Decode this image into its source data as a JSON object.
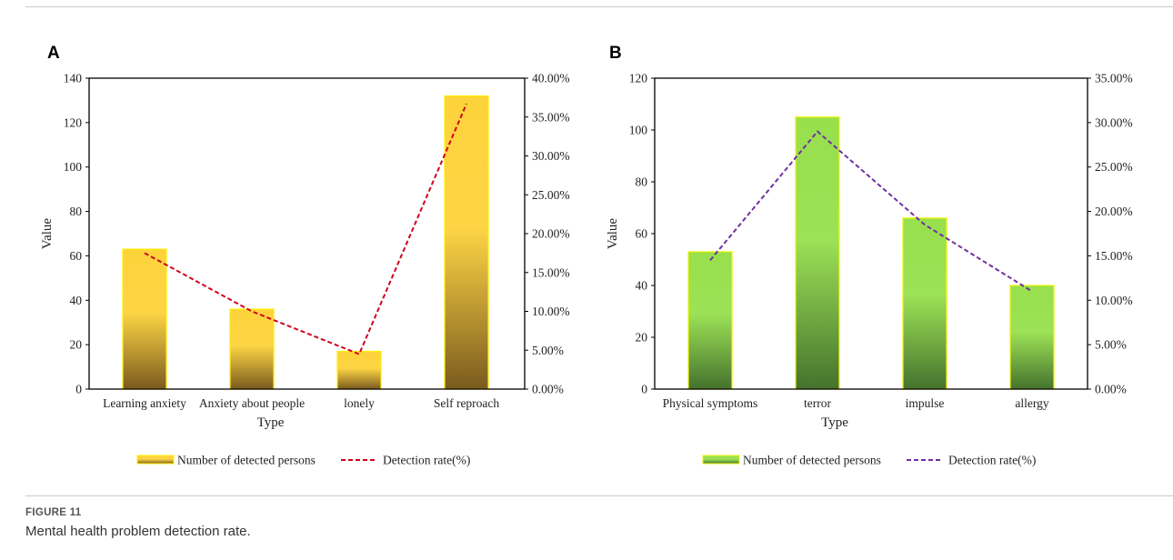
{
  "figure": {
    "label": "FIGURE 11",
    "caption": "Mental health problem detection rate."
  },
  "chart_data": [
    {
      "panel": "A",
      "type": "bar",
      "categories": [
        "Learning anxiety",
        "Anxiety about people",
        "lonely",
        "Self reproach"
      ],
      "series": [
        {
          "name": "Number of detected persons",
          "kind": "bar",
          "axis": "left",
          "values": [
            63,
            36,
            17,
            132
          ]
        },
        {
          "name": "Detection rate(%)",
          "kind": "line",
          "axis": "right",
          "values": [
            17.5,
            10.0,
            4.5,
            36.7
          ]
        }
      ],
      "xlabel": "Type",
      "ylabel": "Value",
      "ylim": [
        0,
        140
      ],
      "yticks": [
        0,
        20,
        40,
        60,
        80,
        100,
        120,
        140
      ],
      "y2lim": [
        0,
        40
      ],
      "y2ticks": [
        "0.00%",
        "5.00%",
        "10.00%",
        "15.00%",
        "20.00%",
        "25.00%",
        "30.00%",
        "35.00%",
        "40.00%"
      ],
      "legend_position": "bottom",
      "colors": {
        "bar_top": "#fdd33b",
        "bar_bottom": "#7a5a1e",
        "bar_edge": "#ffee00",
        "line": "#d0021b"
      },
      "grid": false
    },
    {
      "panel": "B",
      "type": "bar",
      "categories": [
        "Physical symptoms",
        "terror",
        "impulse",
        "allergy"
      ],
      "series": [
        {
          "name": "Number of detected persons",
          "kind": "bar",
          "axis": "left",
          "values": [
            53,
            105,
            66,
            40
          ]
        },
        {
          "name": "Detection rate(%)",
          "kind": "line",
          "axis": "right",
          "values": [
            14.5,
            29.0,
            18.5,
            11.0
          ]
        }
      ],
      "xlabel": "Type",
      "ylabel": "Value",
      "ylim": [
        0,
        120
      ],
      "yticks": [
        0,
        20,
        40,
        60,
        80,
        100,
        120
      ],
      "y2lim": [
        0,
        35
      ],
      "y2ticks": [
        "0.00%",
        "5.00%",
        "10.00%",
        "15.00%",
        "20.00%",
        "25.00%",
        "30.00%",
        "35.00%"
      ],
      "legend_position": "bottom",
      "colors": {
        "bar_top": "#97e04d",
        "bar_bottom": "#45722d",
        "bar_edge": "#f2f200",
        "line": "#7030a0"
      },
      "grid": false
    }
  ]
}
